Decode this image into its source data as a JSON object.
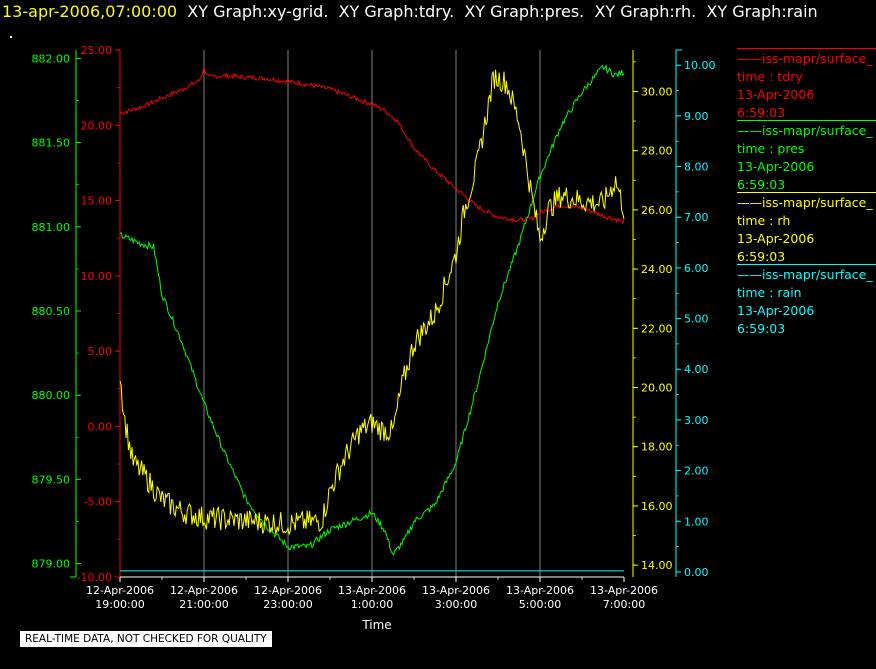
{
  "header": {
    "timestamp": "13-apr-2006,07:00:00",
    "graphs": [
      "XY Graph:xy-grid.",
      "XY Graph:tdry.",
      "XY Graph:pres.",
      "XY Graph:rh.",
      "XY Graph:rain"
    ]
  },
  "banner": "REAL-TIME DATA, NOT CHECKED FOR QUALITY",
  "colors": {
    "tdry": "#ff0000",
    "pres": "#00ff00",
    "rh": "#ffff00",
    "rain": "#00ffff",
    "grid": "#ffffff",
    "background": "#000000"
  },
  "legend": [
    {
      "series": "tdry",
      "name": "iss-mapr/surface_",
      "field": "time : tdry",
      "date": "13-Apr-2006",
      "time": "6:59:03"
    },
    {
      "series": "pres",
      "name": "iss-mapr/surface_",
      "field": "time : pres",
      "date": "13-Apr-2006",
      "time": "6:59:03"
    },
    {
      "series": "rh",
      "name": "iss-mapr/surface_",
      "field": "time : rh",
      "date": "13-Apr-2006",
      "time": "6:59:03"
    },
    {
      "series": "rain",
      "name": "iss-mapr/surface_",
      "field": "time : rain",
      "date": "13-Apr-2006",
      "time": "6:59:03"
    }
  ],
  "chart_data": {
    "type": "line",
    "xlabel": "Time",
    "x_ticks": [
      {
        "date": "12-Apr-2006",
        "time": "19:00:00",
        "h": 0
      },
      {
        "date": "12-Apr-2006",
        "time": "21:00:00",
        "h": 2
      },
      {
        "date": "12-Apr-2006",
        "time": "23:00:00",
        "h": 4
      },
      {
        "date": "13-Apr-2006",
        "time": "1:00:00",
        "h": 6
      },
      {
        "date": "13-Apr-2006",
        "time": "3:00:00",
        "h": 8
      },
      {
        "date": "13-Apr-2006",
        "time": "5:00:00",
        "h": 10
      },
      {
        "date": "13-Apr-2006",
        "time": "7:00:00",
        "h": 12
      }
    ],
    "xlim": [
      0,
      12
    ],
    "grid": "vertical",
    "axes": {
      "tdry": {
        "ylim": [
          -10,
          25
        ],
        "ticks": [
          "-10.00",
          "-5.00",
          "0.00",
          "5.00",
          "10.00",
          "15.00",
          "20.00",
          "25.00"
        ]
      },
      "pres": {
        "ylim": [
          878.92,
          882.05
        ],
        "ticks": [
          "879.00",
          "879.50",
          "880.00",
          "880.50",
          "881.00",
          "881.50",
          "882.00"
        ]
      },
      "rh": {
        "ylim": [
          13.6,
          31.4
        ],
        "ticks": [
          "14.00",
          "16.00",
          "18.00",
          "20.00",
          "22.00",
          "24.00",
          "26.00",
          "28.00",
          "30.00"
        ]
      },
      "rain": {
        "ylim": [
          -0.1,
          10.3
        ],
        "ticks": [
          "0.00",
          "1.00",
          "2.00",
          "3.00",
          "4.00",
          "5.00",
          "6.00",
          "7.00",
          "8.00",
          "9.00",
          "10.00"
        ]
      }
    },
    "series": [
      {
        "key": "tdry",
        "name": "tdry",
        "jitter": 0.15,
        "x": [
          0,
          0.5,
          1,
          1.5,
          1.9,
          2,
          2.1,
          2.5,
          3,
          3.5,
          4,
          4.5,
          5,
          5.5,
          6,
          6.3,
          6.6,
          7,
          7.5,
          8,
          8.5,
          9,
          9.5,
          9.8,
          10,
          10.5,
          11,
          11.5,
          12
        ],
        "y": [
          20.8,
          21.2,
          21.8,
          22.4,
          23.0,
          23.8,
          23.2,
          23.3,
          23.2,
          23.1,
          22.9,
          22.7,
          22.4,
          21.9,
          21.4,
          21.0,
          20.3,
          18.5,
          17.0,
          15.8,
          14.6,
          13.9,
          13.7,
          13.8,
          14.2,
          14.7,
          14.5,
          14.0,
          13.6
        ]
      },
      {
        "key": "pres",
        "name": "pres",
        "jitter": 0.02,
        "x": [
          0,
          0.5,
          0.8,
          1,
          1.5,
          2,
          2.5,
          3,
          3.5,
          4,
          4.5,
          5,
          5.5,
          6,
          6.3,
          6.5,
          6.8,
          7,
          7.5,
          8,
          8.5,
          9,
          9.5,
          10,
          10.5,
          11,
          11.5,
          11.8,
          12
        ],
        "y": [
          880.95,
          880.9,
          880.88,
          880.6,
          880.3,
          879.95,
          879.65,
          879.38,
          879.22,
          879.1,
          879.1,
          879.2,
          879.25,
          879.3,
          879.2,
          879.05,
          879.15,
          879.25,
          879.35,
          879.6,
          880.05,
          880.55,
          880.9,
          881.3,
          881.6,
          881.8,
          881.95,
          881.9,
          881.92
        ]
      },
      {
        "key": "rh",
        "name": "rh",
        "jitter": 0.4,
        "x": [
          0,
          0.1,
          0.3,
          0.6,
          1,
          1.5,
          2,
          3,
          4,
          4.8,
          5,
          5.3,
          5.7,
          6,
          6.2,
          6.5,
          6.7,
          7,
          7.5,
          8,
          8.2,
          8.5,
          8.9,
          9.2,
          9.5,
          9.8,
          10,
          10.2,
          10.5,
          11,
          11.5,
          11.8,
          12
        ],
        "y": [
          20.5,
          19.0,
          17.5,
          17.0,
          16.2,
          15.8,
          15.6,
          15.5,
          15.4,
          15.5,
          16.5,
          17.5,
          18.5,
          18.8,
          18.6,
          18.5,
          20.0,
          21.5,
          22.5,
          24.5,
          26.0,
          27.5,
          30.5,
          30.3,
          29.0,
          26.5,
          25.0,
          26.0,
          26.5,
          26.3,
          26.2,
          27.0,
          26.0
        ]
      },
      {
        "key": "rain",
        "name": "rain",
        "jitter": 0,
        "x": [
          0,
          12
        ],
        "y": [
          0.02,
          0.02
        ]
      }
    ]
  }
}
